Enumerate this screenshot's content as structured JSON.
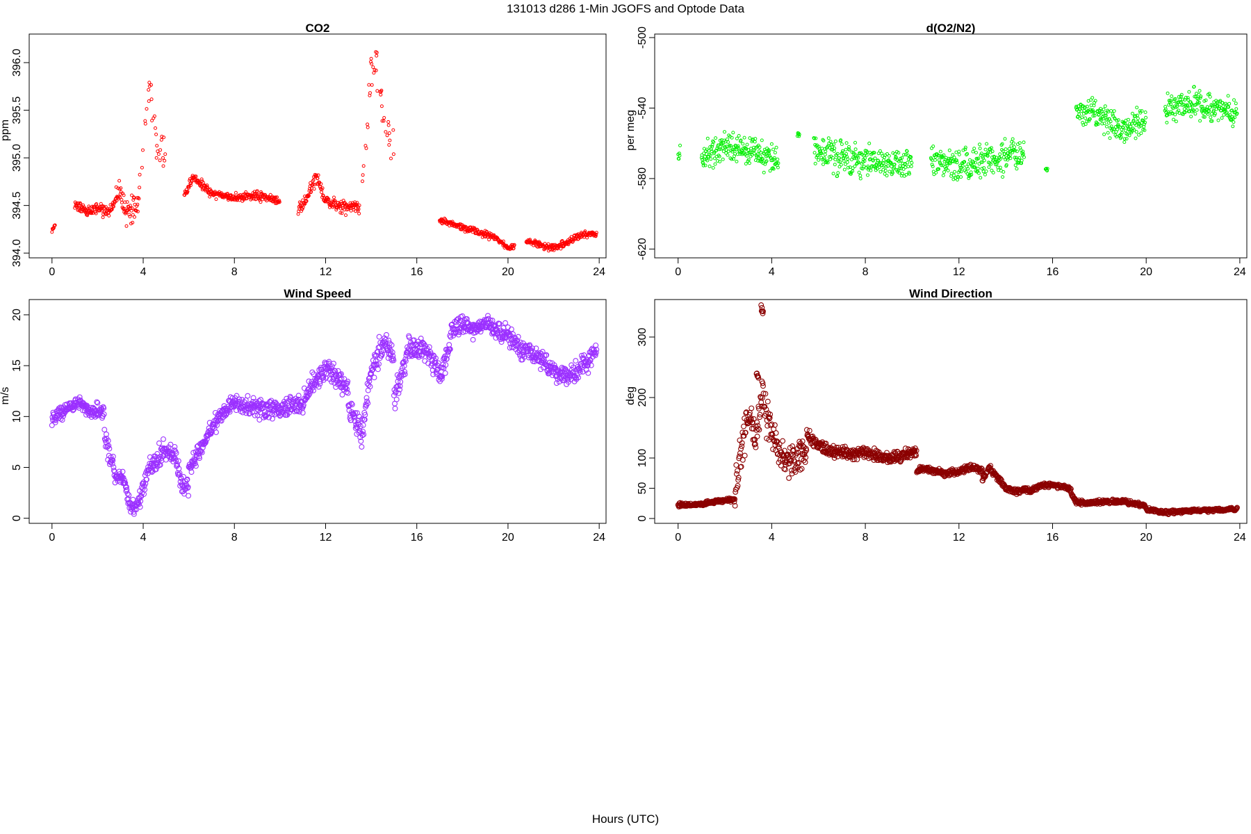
{
  "figure": {
    "title": "131013   d286   1-Min  JGOFS and Optode Data",
    "xlabel": "Hours (UTC)"
  },
  "chart_data": [
    {
      "id": "co2",
      "type": "scatter",
      "title": "CO2",
      "xlabel": "",
      "ylabel": "ppm",
      "xlim": [
        -1,
        24.3
      ],
      "ylim": [
        393.95,
        396.3
      ],
      "xticks": [
        0,
        4,
        8,
        12,
        16,
        20,
        24
      ],
      "yticks": [
        394.0,
        394.5,
        395.0,
        395.5,
        396.0
      ],
      "ytick_labels": [
        "394.0",
        "394.5",
        "395.0",
        "395.5",
        "396.0"
      ],
      "ytick_rotation": "vertical",
      "color": "#ff0000",
      "marker": "small open circle",
      "grid": false,
      "legend": "none",
      "segments": [
        {
          "x": [
            0.0,
            0.1,
            0.15
          ],
          "y": [
            394.22,
            394.27,
            394.32
          ],
          "noise": 0.02,
          "gap": 0
        },
        {
          "x": [
            1.0,
            1.5,
            2.0,
            2.5,
            2.8
          ],
          "y": [
            394.5,
            394.44,
            394.47,
            394.44,
            394.55
          ],
          "noise": 0.05,
          "gap": 0
        },
        {
          "x": [
            2.8,
            3.0,
            3.2,
            3.5,
            3.8
          ],
          "y": [
            394.55,
            394.7,
            394.4,
            394.45,
            394.5
          ],
          "noise": 0.12,
          "gap": 0
        },
        {
          "x": [
            3.8,
            4.0,
            4.2,
            4.4,
            4.6,
            5.0
          ],
          "y": [
            394.6,
            395.1,
            395.75,
            395.55,
            395.15,
            395.0
          ],
          "noise": 0.15,
          "gap": 8
        },
        {
          "x": [
            5.8,
            6.2,
            7.0,
            8.0,
            9.0,
            10.0
          ],
          "y": [
            394.6,
            394.8,
            394.62,
            394.58,
            394.6,
            394.55
          ],
          "noise": 0.04,
          "gap": 0
        },
        {
          "x": [
            10.8,
            11.2,
            11.6,
            12.0,
            12.5,
            13.5
          ],
          "y": [
            394.45,
            394.6,
            394.8,
            394.55,
            394.5,
            394.47
          ],
          "noise": 0.06,
          "gap": 0
        },
        {
          "x": [
            13.6,
            13.8,
            14.0,
            14.2,
            14.4,
            14.7,
            15.0
          ],
          "y": [
            394.8,
            395.2,
            395.9,
            396.1,
            395.6,
            395.3,
            395.15
          ],
          "noise": 0.2,
          "gap": 6
        },
        {
          "x": [
            17.0,
            18.0,
            19.0,
            19.5,
            20.0,
            20.3
          ],
          "y": [
            394.35,
            394.27,
            394.2,
            394.15,
            394.05,
            394.08
          ],
          "noise": 0.03,
          "gap": 0
        },
        {
          "x": [
            20.8,
            21.5,
            22.0,
            22.5,
            23.0,
            23.5,
            23.9
          ],
          "y": [
            394.12,
            394.08,
            394.05,
            394.1,
            394.18,
            394.2,
            394.2
          ],
          "noise": 0.03,
          "gap": 0
        }
      ]
    },
    {
      "id": "o2n2",
      "type": "scatter",
      "title": "d(O2/N2)",
      "xlabel": "",
      "ylabel": "per meg",
      "xlim": [
        -1,
        24.3
      ],
      "ylim": [
        -625,
        -498
      ],
      "xticks": [
        0,
        4,
        8,
        12,
        16,
        20,
        24
      ],
      "yticks": [
        -620,
        -580,
        -540,
        -500
      ],
      "ytick_labels": [
        "-620",
        "-580",
        "-540",
        "-500"
      ],
      "ytick_rotation": "vertical",
      "color": "#00ee00",
      "marker": "small open circle",
      "grid": false,
      "legend": "none",
      "segments": [
        {
          "x": [
            0.0,
            0.1
          ],
          "y": [
            -565,
            -565
          ],
          "noise": 4,
          "gap": 0
        },
        {
          "x": [
            1.0,
            2.0,
            3.0,
            4.0,
            4.3
          ],
          "y": [
            -568,
            -562,
            -565,
            -568,
            -570
          ],
          "noise": 7,
          "gap": 0
        },
        {
          "x": [
            5.1,
            5.2
          ],
          "y": [
            -555,
            -555
          ],
          "noise": 1,
          "gap": 0
        },
        {
          "x": [
            5.8,
            7.0,
            8.0,
            9.0,
            10.0
          ],
          "y": [
            -565,
            -568,
            -570,
            -572,
            -570
          ],
          "noise": 8,
          "gap": 0
        },
        {
          "x": [
            10.8,
            12.0,
            13.0,
            14.0,
            14.8
          ],
          "y": [
            -568,
            -572,
            -570,
            -568,
            -565
          ],
          "noise": 8,
          "gap": 0
        },
        {
          "x": [
            15.7,
            15.8
          ],
          "y": [
            -575,
            -575
          ],
          "noise": 1,
          "gap": 0
        },
        {
          "x": [
            17.0,
            18.0,
            19.0,
            19.5,
            20.0
          ],
          "y": [
            -540,
            -545,
            -552,
            -550,
            -545
          ],
          "noise": 7,
          "gap": 0
        },
        {
          "x": [
            20.8,
            22.0,
            23.0,
            23.9
          ],
          "y": [
            -540,
            -538,
            -540,
            -542
          ],
          "noise": 7,
          "gap": 0
        }
      ]
    },
    {
      "id": "ws",
      "type": "scatter",
      "title": "Wind Speed",
      "xlabel": "",
      "ylabel": "m/s",
      "xlim": [
        -1,
        24.3
      ],
      "ylim": [
        -0.5,
        21.5
      ],
      "xticks": [
        0,
        4,
        8,
        12,
        16,
        20,
        24
      ],
      "yticks": [
        0,
        5,
        10,
        15,
        20
      ],
      "ytick_labels": [
        "0",
        "5",
        "10",
        "15",
        "20"
      ],
      "ytick_rotation": "vertical",
      "color": "#9b30ff",
      "marker": "open circle",
      "grid": false,
      "legend": "none",
      "segments": [
        {
          "x": [
            0.0,
            0.3,
            0.8,
            1.2,
            1.6,
            2.0,
            2.3
          ],
          "y": [
            9.8,
            10.3,
            11.0,
            11.5,
            10.5,
            10.8,
            10.2
          ],
          "noise": 0.6,
          "gap": 0
        },
        {
          "x": [
            2.3,
            2.5,
            2.8,
            3.1,
            3.4,
            3.6,
            3.9
          ],
          "y": [
            8.0,
            6.5,
            4.0,
            4.0,
            1.5,
            0.8,
            2.0
          ],
          "noise": 0.8,
          "gap": 0
        },
        {
          "x": [
            3.9,
            4.3,
            4.8,
            5.2,
            5.5,
            5.7,
            6.0
          ],
          "y": [
            2.5,
            5.0,
            6.5,
            6.5,
            5.5,
            3.0,
            3.0
          ],
          "noise": 0.9,
          "gap": 0
        },
        {
          "x": [
            6.0,
            6.5,
            7.0,
            7.5,
            8.0,
            8.5,
            9.0
          ],
          "y": [
            5.0,
            6.5,
            9.0,
            10.5,
            11.5,
            11.0,
            11.0
          ],
          "noise": 0.8,
          "gap": 0
        },
        {
          "x": [
            9.0,
            10.0,
            11.0,
            11.5,
            12.0,
            12.5,
            13.0
          ],
          "y": [
            11.0,
            10.5,
            11.5,
            13.5,
            14.5,
            14.0,
            12.5
          ],
          "noise": 0.9,
          "gap": 0
        },
        {
          "x": [
            13.0,
            13.3,
            13.6,
            13.9,
            14.3,
            14.7,
            15.0
          ],
          "y": [
            11.0,
            10.0,
            8.0,
            13.5,
            16.0,
            17.0,
            15.0
          ],
          "noise": 1.2,
          "gap": 0
        },
        {
          "x": [
            15.0,
            15.3,
            15.6,
            16.0,
            16.5,
            17.0,
            17.5
          ],
          "y": [
            11.5,
            14.0,
            16.5,
            16.5,
            16.5,
            14.0,
            17.5
          ],
          "noise": 1.1,
          "gap": 0
        },
        {
          "x": [
            17.5,
            18.0,
            18.5,
            19.0,
            19.5,
            20.0,
            20.5
          ],
          "y": [
            18.5,
            19.0,
            18.5,
            19.0,
            18.5,
            18.0,
            17.0
          ],
          "noise": 0.8,
          "gap": 0
        },
        {
          "x": [
            20.5,
            21.0,
            21.5,
            22.0,
            22.5,
            23.0,
            23.5,
            23.9
          ],
          "y": [
            16.5,
            16.5,
            15.5,
            14.5,
            14.0,
            14.5,
            15.5,
            16.5
          ],
          "noise": 0.9,
          "gap": 0
        }
      ]
    },
    {
      "id": "wd",
      "type": "scatter",
      "title": "Wind Direction",
      "xlabel": "",
      "ylabel": "deg",
      "xlim": [
        -1,
        24.3
      ],
      "ylim": [
        -8,
        362
      ],
      "xticks": [
        0,
        4,
        8,
        12,
        16,
        20,
        24
      ],
      "yticks": [
        0,
        50,
        100,
        200,
        300
      ],
      "ytick_labels": [
        "0",
        "50",
        "100",
        "200",
        "300"
      ],
      "ytick_rotation": "vertical",
      "color": "#8b0000",
      "marker": "open circle",
      "grid": false,
      "legend": "none",
      "segments": [
        {
          "x": [
            0.0,
            0.5,
            1.0,
            1.5,
            2.0,
            2.4
          ],
          "y": [
            23,
            22,
            24,
            27,
            30,
            32
          ],
          "noise": 2.5,
          "gap": 0
        },
        {
          "x": [
            2.4,
            2.6,
            2.8,
            3.0,
            3.3,
            3.6,
            3.9
          ],
          "y": [
            40,
            90,
            130,
            170,
            140,
            200,
            150
          ],
          "noise": 28,
          "gap": 0
        },
        {
          "x": [
            3.9,
            4.2,
            4.6,
            5.0,
            5.5
          ],
          "y": [
            150,
            120,
            90,
            100,
            110
          ],
          "noise": 22,
          "gap": 0
        },
        {
          "x": [
            5.5,
            6.0,
            6.5,
            7.0,
            7.5,
            8.0
          ],
          "y": [
            140,
            120,
            112,
            110,
            105,
            112
          ],
          "noise": 9,
          "gap": 0
        },
        {
          "x": [
            8.0,
            8.5,
            9.0,
            9.5,
            10.0,
            10.2
          ],
          "y": [
            110,
            105,
            100,
            103,
            110,
            108
          ],
          "noise": 8,
          "gap": 0
        },
        {
          "x": [
            10.2,
            10.5,
            11.0,
            11.5,
            12.0,
            12.5,
            13.0
          ],
          "y": [
            80,
            82,
            78,
            75,
            78,
            85,
            80
          ],
          "noise": 4,
          "gap": 0
        },
        {
          "x": [
            13.0,
            13.3,
            13.6,
            14.0,
            14.5,
            15.0
          ],
          "y": [
            65,
            85,
            70,
            50,
            45,
            48
          ],
          "noise": 4,
          "gap": 0
        },
        {
          "x": [
            15.0,
            15.5,
            16.0,
            16.5,
            16.8
          ],
          "y": [
            45,
            55,
            55,
            52,
            48
          ],
          "noise": 3,
          "gap": 0
        },
        {
          "x": [
            16.8,
            17.0,
            17.5,
            18.0,
            19.0,
            19.5,
            20.0
          ],
          "y": [
            40,
            28,
            25,
            27,
            28,
            25,
            20
          ],
          "noise": 3,
          "gap": 0
        },
        {
          "x": [
            20.0,
            20.5,
            21.0,
            22.0,
            23.0,
            23.5,
            23.9
          ],
          "y": [
            15,
            12,
            10,
            13,
            14,
            15,
            16
          ],
          "noise": 2.5,
          "gap": 0
        },
        {
          "x": [
            3.55,
            3.65
          ],
          "y": [
            350,
            338
          ],
          "noise": 5,
          "gap": 0
        },
        {
          "x": [
            3.35,
            3.45
          ],
          "y": [
            240,
            230
          ],
          "noise": 4,
          "gap": 0
        }
      ]
    }
  ]
}
